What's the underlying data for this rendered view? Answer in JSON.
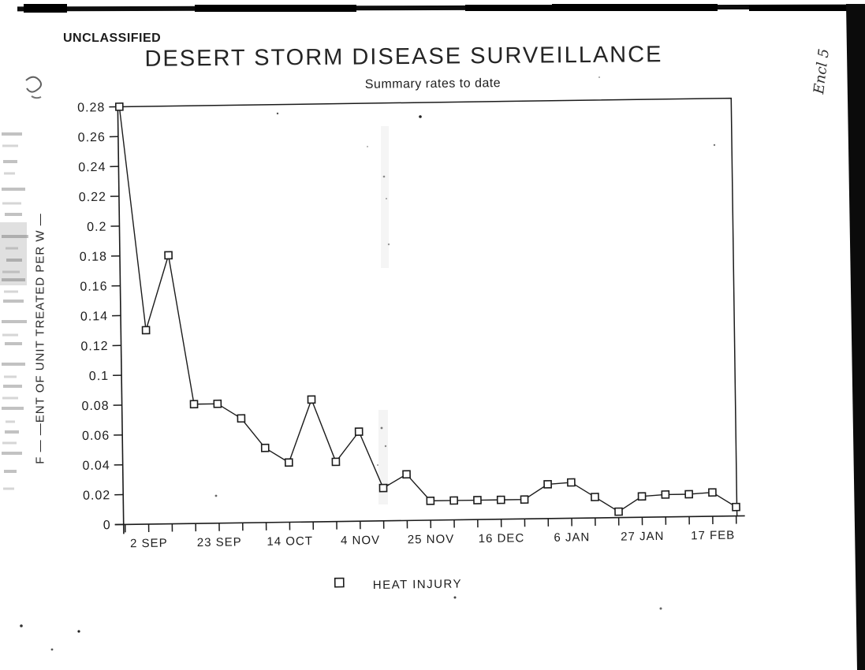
{
  "classification_banner": "UNCLASSIFIED",
  "handwritten_annotation": "Encl 5",
  "chart_data": {
    "type": "line",
    "title": "DESERT STORM DISEASE SURVEILLANCE",
    "subtitle": "Summary rates to date",
    "ylabel_visible": "F — —ENT OF UNIT TREATED PER W —",
    "ylim": [
      0,
      0.28
    ],
    "grid": false,
    "ink_color": "#1b1b1b",
    "paper_color": "#ffffff",
    "y_tick_labels": [
      "0.28",
      "0.26",
      "0.24",
      "0.22",
      "0.2",
      "0.18",
      "0.16",
      "0.14",
      "0.12",
      "0.1",
      "0.08",
      "0.06",
      "0.04",
      "0.02",
      "0"
    ],
    "x_tick_labels": [
      "2 SEP",
      "23 SEP",
      "14 OCT",
      "4 NOV",
      "25 NOV",
      "16 DEC",
      "6 JAN",
      "27 JAN",
      "17 FEB"
    ],
    "x_labeled_tick_indices": [
      1,
      4,
      7,
      10,
      13,
      16,
      19,
      22,
      25
    ],
    "n_weekly_ticks": 27,
    "legend": {
      "position": "bottom-center",
      "entries": [
        {
          "label": "HEAT INJURY",
          "marker": "open-square"
        }
      ]
    },
    "series": [
      {
        "name": "HEAT INJURY",
        "marker": "open-square",
        "values": [
          0.28,
          0.13,
          0.18,
          0.08,
          0.08,
          0.07,
          0.05,
          0.04,
          0.082,
          0.04,
          0.06,
          0.022,
          0.031,
          0.013,
          0.013,
          0.013,
          0.013,
          0.013,
          0.023,
          0.024,
          0.014,
          0.004,
          0.014,
          0.015,
          0.015,
          0.016,
          0.006
        ]
      }
    ]
  }
}
